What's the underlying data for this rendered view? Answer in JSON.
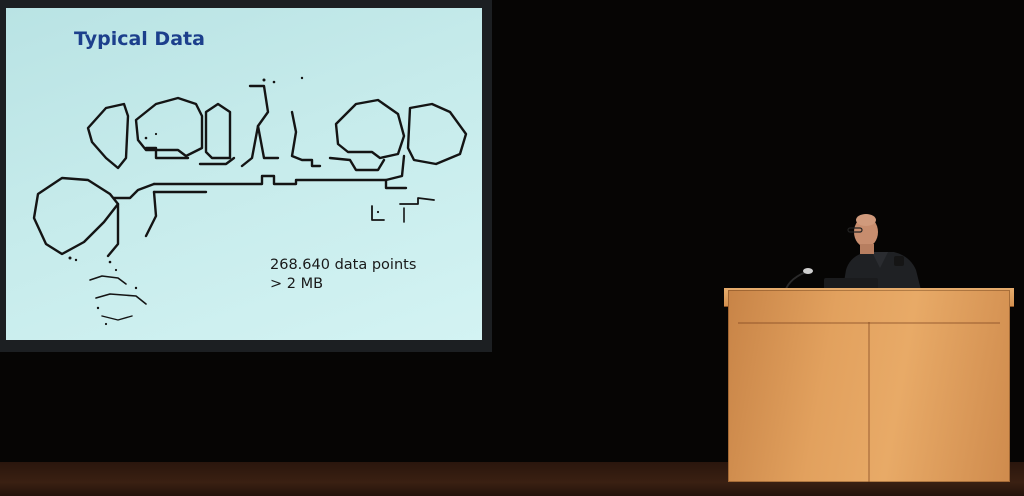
{
  "slide": {
    "title": "Typical Data",
    "caption_line1": "268.640 data points",
    "caption_line2": "> 2 MB"
  },
  "colors": {
    "slide_background": "#c6ebeb",
    "title_text": "#1c3f8c",
    "podium_wood": "#e2a15e",
    "stage_background": "#060504"
  }
}
